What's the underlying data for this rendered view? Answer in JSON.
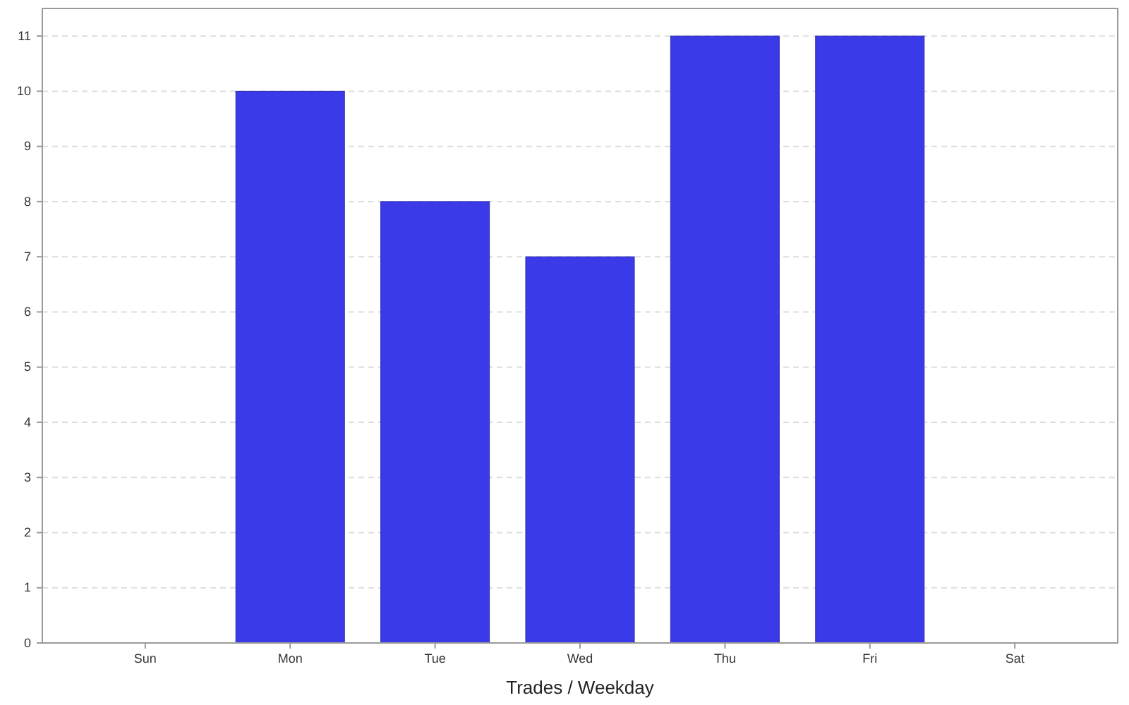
{
  "chart_data": {
    "type": "bar",
    "xlabel": "Trades / Weekday",
    "categories": [
      "Sun",
      "Mon",
      "Tue",
      "Wed",
      "Thu",
      "Fri",
      "Sat"
    ],
    "values": [
      0,
      10,
      8,
      7,
      11,
      11,
      0
    ],
    "color": "#3a3ae8",
    "ylim": [
      0,
      11.5
    ],
    "yticks": [
      0,
      1,
      2,
      3,
      4,
      5,
      6,
      7,
      8,
      9,
      10,
      11
    ],
    "grid": "y"
  }
}
